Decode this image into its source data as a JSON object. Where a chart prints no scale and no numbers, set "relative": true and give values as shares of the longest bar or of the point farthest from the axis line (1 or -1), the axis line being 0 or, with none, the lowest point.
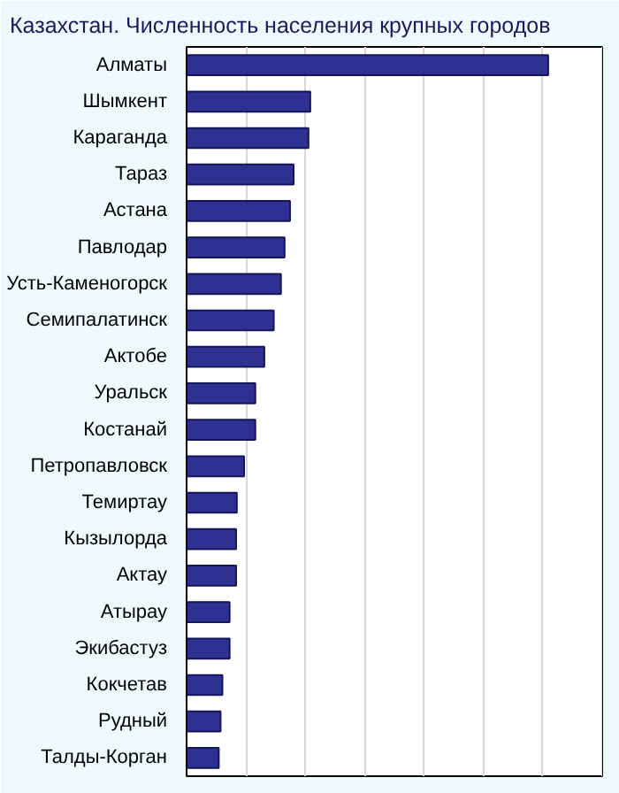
{
  "chart_data": {
    "type": "bar",
    "orientation": "horizontal",
    "relative": true,
    "title": "Казахстан. Численность населения крупных городов",
    "categories": [
      "Алматы",
      "Шымкент",
      "Караганда",
      "Тараз",
      "Астана",
      "Павлодар",
      "Усть-Каменогорск",
      "Семипалатинск",
      "Актобе",
      "Уральск",
      "Костанай",
      "Петропавловск",
      "Темиртау",
      "Кызылорда",
      "Актау",
      "Атырау",
      "Экибастуз",
      "Кокчетав",
      "Рудный",
      "Талды-Корган"
    ],
    "values": [
      1,
      0.342,
      0.337,
      0.296,
      0.286,
      0.271,
      0.261,
      0.241,
      0.215,
      0.19,
      0.19,
      0.159,
      0.139,
      0.137,
      0.137,
      0.119,
      0.119,
      0.099,
      0.094,
      0.089
    ],
    "color": "#2e3192",
    "grid": "x"
  }
}
